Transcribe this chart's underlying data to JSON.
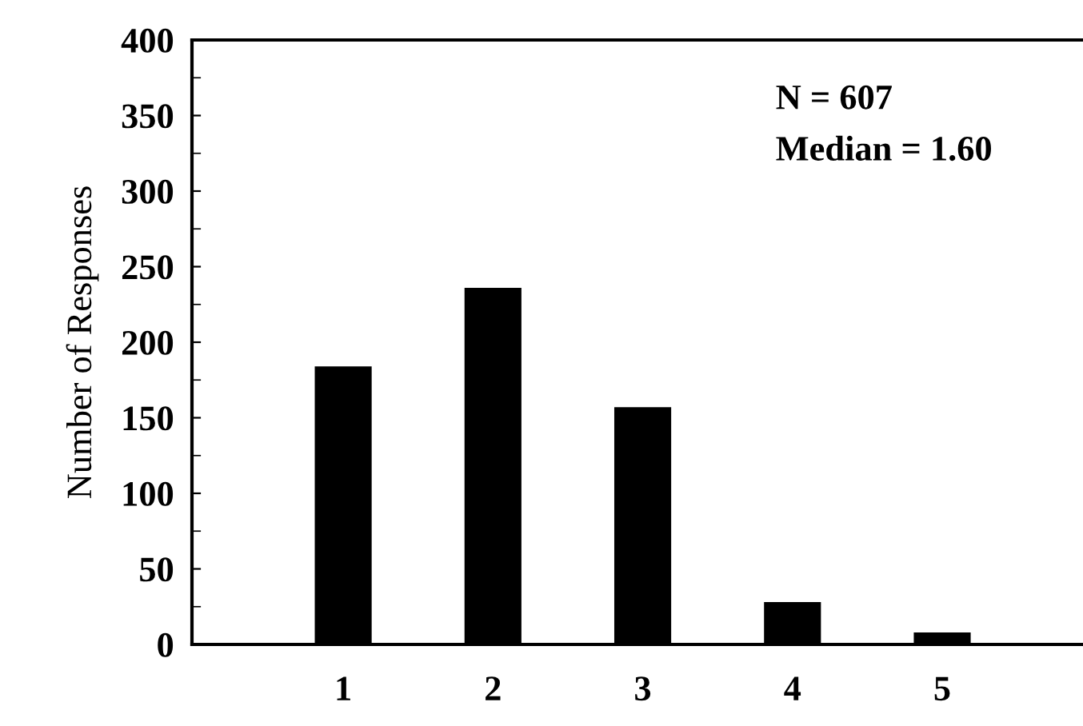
{
  "chart_data": {
    "type": "bar",
    "ylabel": "Number of Responses",
    "categories": [
      "1",
      "2",
      "3",
      "4",
      "5"
    ],
    "values": [
      184,
      236,
      157,
      28,
      8
    ],
    "color": "#000000",
    "ylim": [
      0,
      400
    ],
    "yticks": [
      0,
      50,
      100,
      150,
      200,
      250,
      300,
      350,
      400
    ],
    "grid": false,
    "annotations": [
      "N = 607",
      "Median = 1.60"
    ]
  }
}
